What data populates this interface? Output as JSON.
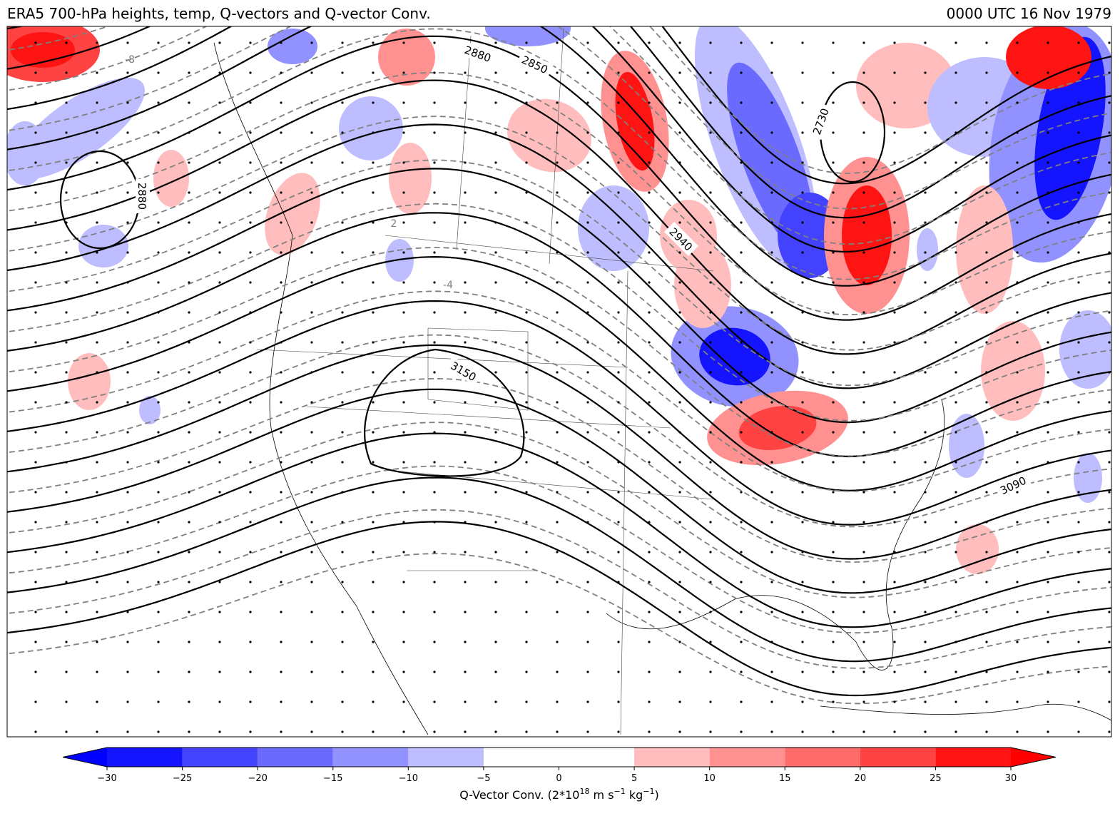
{
  "header": {
    "title": "ERA5 700-hPa heights, temp, Q-vectors and Q-vector Conv.",
    "time": "0000 UTC 16 Nov 1979"
  },
  "map": {
    "height_labels": [
      2880,
      2850,
      2730,
      2880,
      2940,
      3150,
      3090
    ],
    "temperature_labels": [
      -8,
      2,
      -4
    ]
  },
  "colorbar": {
    "lim": [
      -30,
      30
    ],
    "ticks": [
      {
        "value": -30,
        "label": "−30"
      },
      {
        "value": -25,
        "label": "−25"
      },
      {
        "value": -20,
        "label": "−20"
      },
      {
        "value": -15,
        "label": "−15"
      },
      {
        "value": -10,
        "label": "−10"
      },
      {
        "value": -5,
        "label": "−5"
      },
      0,
      5,
      10,
      15,
      20,
      25,
      30
    ],
    "bounds": [
      -30,
      -25,
      -20,
      -15,
      -10,
      -5,
      0,
      5,
      10,
      15,
      20,
      25,
      30
    ],
    "colors": [
      "#1414ff",
      "#4242ff",
      "#6a6aff",
      "#9191ff",
      "#bdbdff",
      "#ffffff",
      "#ffffff",
      "#ffbdbd",
      "#ff9191",
      "#ff6a6a",
      "#ff4242",
      "#ff1414"
    ],
    "under": "#0000ff",
    "over": "#ff0000",
    "label_parts": [
      "Q-Vector Conv. (2*10",
      "18",
      " m s",
      "−1",
      " kg",
      "−1",
      ")"
    ]
  }
}
